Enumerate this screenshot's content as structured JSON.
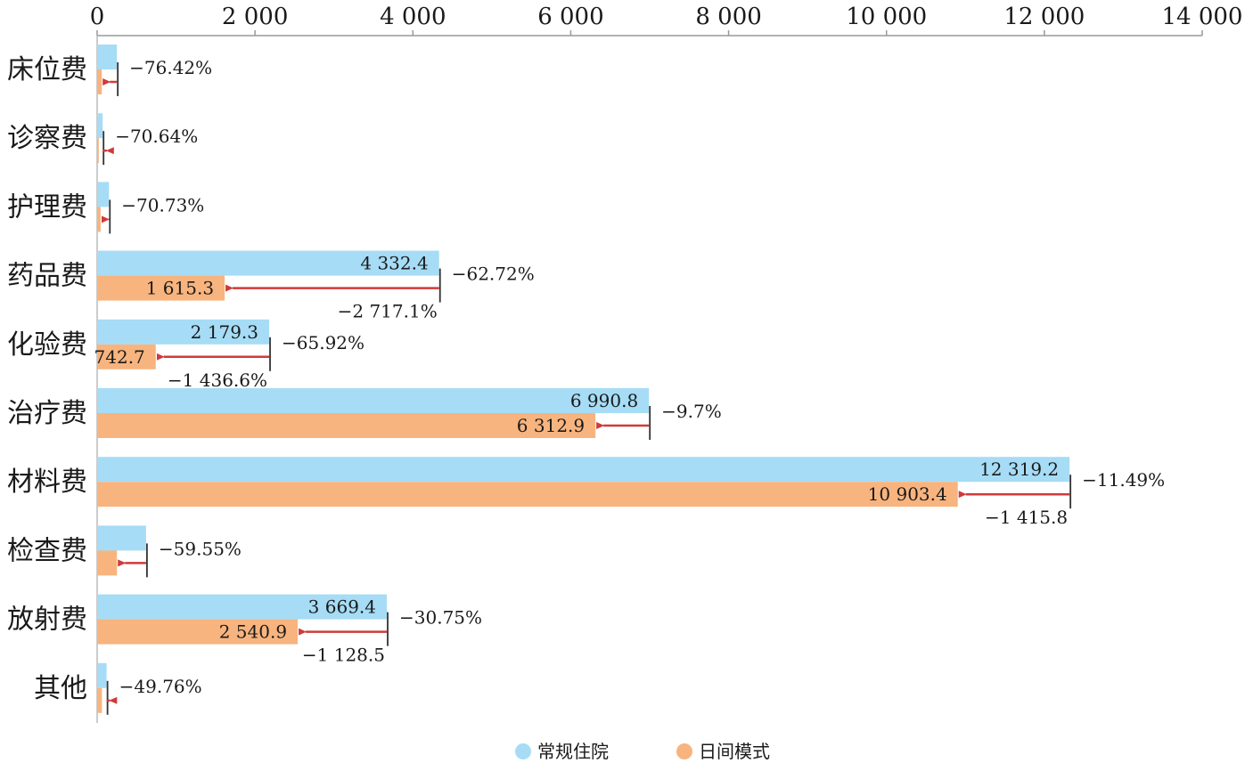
{
  "chart_data": {
    "type": "bar",
    "orientation": "horizontal",
    "categories": [
      "床位费",
      "诊察费",
      "护理费",
      "药品费",
      "化验费",
      "治疗费",
      "材料费",
      "检查费",
      "放射费",
      "其他"
    ],
    "series": [
      {
        "name": "常规住院",
        "color": "#a6dcf5",
        "values": [
          250,
          70,
          150,
          4332.4,
          2179.3,
          6990.8,
          12319.2,
          620,
          3669.4,
          120
        ],
        "value_labels": [
          "",
          "",
          "",
          "4 332.4",
          "2 179.3",
          "6 990.8",
          "12 319.2",
          "",
          "3 669.4",
          ""
        ]
      },
      {
        "name": "日间模式",
        "color": "#f8b47e",
        "values": [
          59,
          20.6,
          43.9,
          1615.3,
          742.7,
          6312.9,
          10903.4,
          251,
          2540.9,
          60.3
        ],
        "value_labels": [
          "",
          "",
          "",
          "1 615.3",
          "742.7",
          "6 312.9",
          "10 903.4",
          "",
          "2 540.9",
          ""
        ]
      }
    ],
    "change_percent": [
      "−76.42%",
      "−70.64%",
      "−70.73%",
      "−62.72%",
      "−65.92%",
      "−9.7%",
      "−11.49%",
      "−59.55%",
      "−30.75%",
      "−49.76%"
    ],
    "change_absolute": [
      "",
      "",
      "",
      "−2 717.1%",
      "−1 436.6%",
      "",
      "−1 415.8",
      "",
      "−1 128.5",
      ""
    ],
    "arrow_color": "#d03a3a",
    "x_axis": {
      "position": "top",
      "range": [
        0,
        14000
      ],
      "ticks": [
        0,
        2000,
        4000,
        6000,
        8000,
        10000,
        12000,
        14000
      ],
      "tick_labels": [
        "0",
        "2 000",
        "4 000",
        "6 000",
        "8 000",
        "10 000",
        "12 000",
        "14 000"
      ]
    },
    "grid": false,
    "legend": {
      "position": "bottom"
    }
  }
}
